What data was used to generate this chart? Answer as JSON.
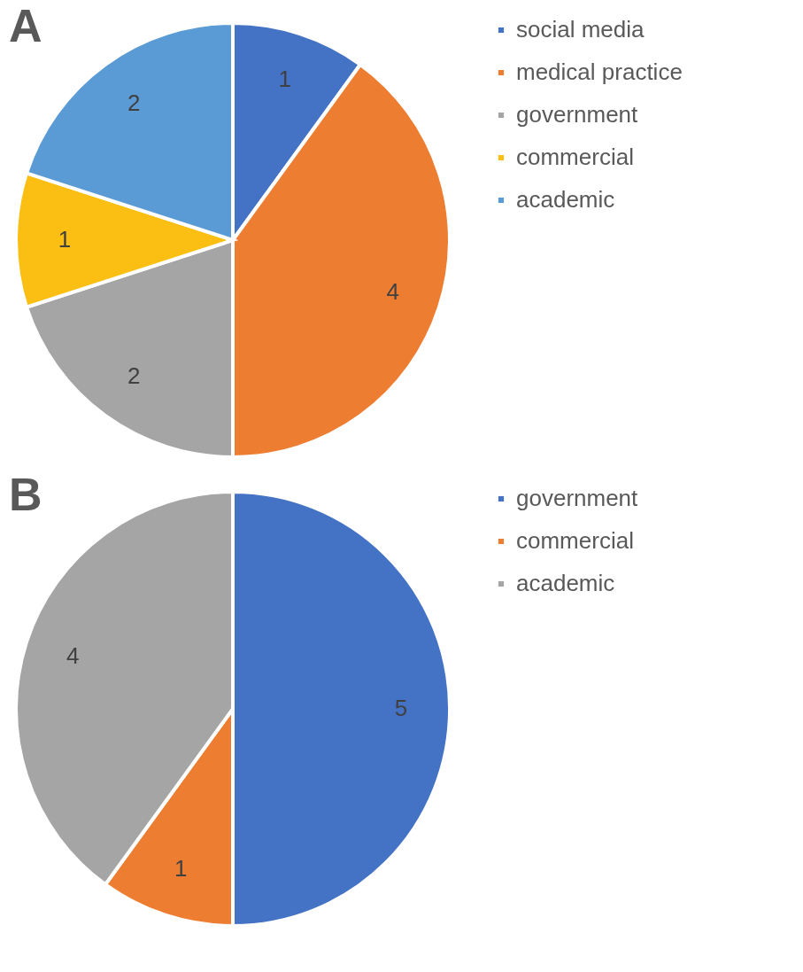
{
  "chart_data": [
    {
      "type": "pie",
      "title": "A",
      "categories": [
        "social media",
        "medical practice",
        "government",
        "commercial",
        "academic"
      ],
      "values": [
        1,
        4,
        2,
        1,
        2
      ],
      "colors": [
        "#4472c4",
        "#ed7d31",
        "#a5a5a5",
        "#fbbf14",
        "#5b9bd5"
      ],
      "data_labels": true,
      "legend": "right"
    },
    {
      "type": "pie",
      "title": "B",
      "categories": [
        "government",
        "commercial",
        "academic"
      ],
      "values": [
        5,
        1,
        4
      ],
      "colors": [
        "#4472c4",
        "#ed7d31",
        "#a5a5a5"
      ],
      "data_labels": true,
      "legend": "right"
    }
  ]
}
